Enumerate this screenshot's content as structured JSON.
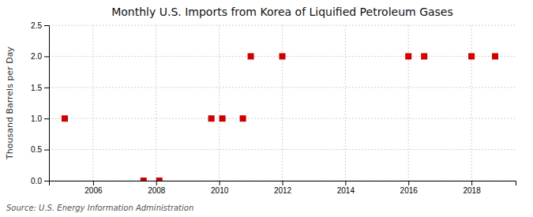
{
  "chart_data": {
    "type": "scatter",
    "title": "Monthly U.S. Imports from Korea of Liquified Petroleum Gases",
    "y_label": "Thousand Barrels per Day",
    "annotations": [
      "Source: U.S. Energy Information Administration"
    ],
    "x": [
      2005.1,
      2007.6,
      2008.1,
      2009.75,
      2010.1,
      2010.75,
      2011.0,
      2012.0,
      2016.0,
      2016.5,
      2018.0,
      2018.75
    ],
    "values": [
      1.0,
      0.0,
      0.0,
      1.0,
      1.0,
      1.0,
      2.0,
      2.0,
      2.0,
      2.0,
      2.0,
      2.0
    ],
    "color": "#cc0000",
    "marker": "square",
    "xlim": [
      2004.6,
      2019.4
    ],
    "ylim": [
      0.0,
      2.5
    ],
    "xticks": [
      2006,
      2008,
      2010,
      2012,
      2014,
      2016,
      2018
    ],
    "yticks": [
      {
        "value": 0.0,
        "label": "0.0"
      },
      0.5,
      {
        "value": 1.0,
        "label": "1.0"
      },
      1.5,
      {
        "value": 2.0,
        "label": "2.0"
      },
      2.5
    ],
    "grid": true
  }
}
